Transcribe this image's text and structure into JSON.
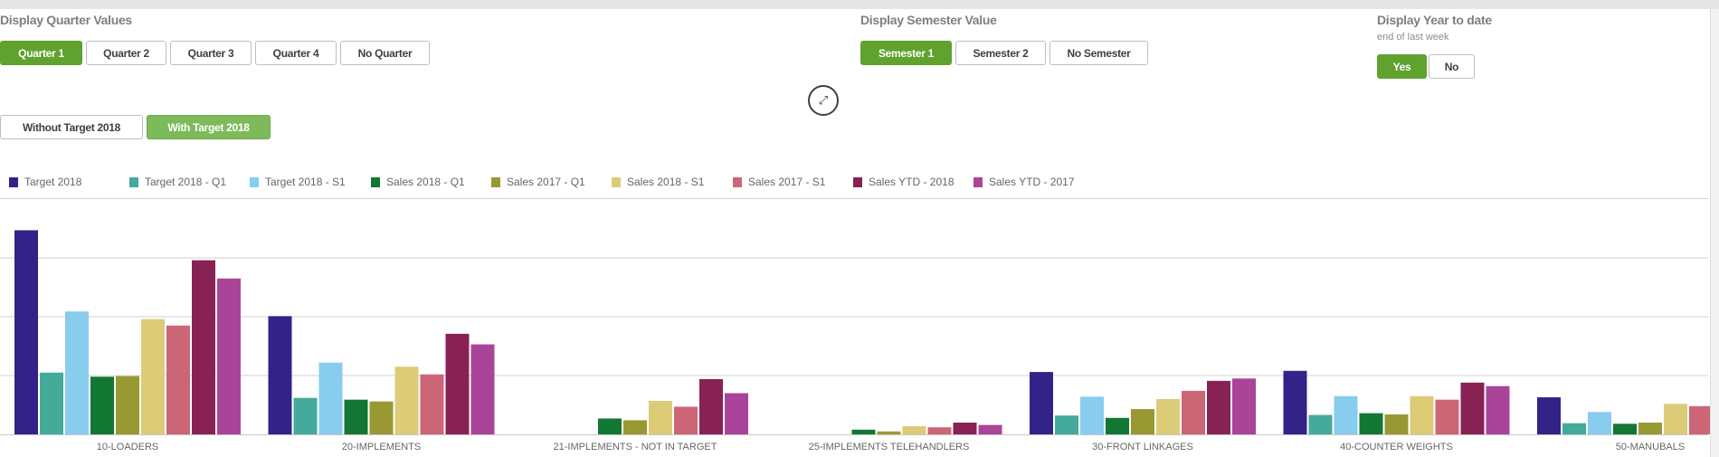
{
  "quarter": {
    "title": "Display Quarter Values",
    "options": [
      "Quarter 1",
      "Quarter 2",
      "Quarter 3",
      "Quarter 4",
      "No Quarter"
    ],
    "selected": "Quarter 1"
  },
  "semester": {
    "title": "Display Semester Value",
    "options": [
      "Semester 1",
      "Semester 2",
      "No Semester"
    ],
    "selected": "Semester 1"
  },
  "ytd": {
    "title": "Display Year to date",
    "subtitle": "end of last week",
    "options": [
      "Yes",
      "No"
    ],
    "selected": "Yes"
  },
  "target": {
    "options": [
      "Without Target 2018",
      "With Target 2018"
    ],
    "selected": "With Target 2018"
  },
  "icons": {
    "expand": "expand-arrows-icon"
  },
  "colors": {
    "selected_button": "#5fa22e",
    "target_selected_button": "#7dbb5a"
  },
  "chart_data": {
    "type": "bar",
    "grid": true,
    "legend": "top-left",
    "y_axis_labels_shown": false,
    "categories": [
      "10-LOADERS",
      "20-IMPLEMENTS",
      "21-IMPLEMENTS - NOT IN TARGET",
      "25-IMPLEMENTS TELEHANDLERS",
      "30-FRONT LINKAGES",
      "40-COUNTER WEIGHTS",
      "50-MANUBALS"
    ],
    "series": [
      {
        "name": "Target 2018",
        "color": "#332288",
        "values": [
          3.47,
          2.01,
          0,
          0,
          1.06,
          1.08,
          0.63
        ]
      },
      {
        "name": "Target 2018 - Q1",
        "color": "#44aa99",
        "values": [
          1.05,
          0.62,
          0,
          0,
          0.32,
          0.33,
          0.19
        ]
      },
      {
        "name": "Target 2018 - S1",
        "color": "#88ccee",
        "values": [
          2.09,
          1.22,
          0,
          0,
          0.64,
          0.65,
          0.38
        ]
      },
      {
        "name": "Sales 2018 - Q1",
        "color": "#117733",
        "values": [
          0.98,
          0.59,
          0.27,
          0.08,
          0.28,
          0.36,
          0.18
        ]
      },
      {
        "name": "Sales 2017 - Q1",
        "color": "#999933",
        "values": [
          0.99,
          0.56,
          0.24,
          0.05,
          0.43,
          0.34,
          0.2
        ]
      },
      {
        "name": "Sales 2018 - S1",
        "color": "#ddcc77",
        "values": [
          1.96,
          1.15,
          0.57,
          0.14,
          0.6,
          0.65,
          0.52
        ]
      },
      {
        "name": "Sales 2017 - S1",
        "color": "#cc6677",
        "values": [
          1.85,
          1.02,
          0.47,
          0.12,
          0.74,
          0.59,
          0.48
        ]
      },
      {
        "name": "Sales YTD - 2018",
        "color": "#882255",
        "values": [
          2.96,
          1.71,
          0.94,
          0.2,
          0.91,
          0.88,
          null
        ]
      },
      {
        "name": "Sales YTD - 2017",
        "color": "#aa4499",
        "values": [
          2.65,
          1.53,
          0.7,
          0.16,
          0.95,
          0.82,
          null
        ]
      }
    ],
    "ylim": [
      0,
      3.5
    ]
  }
}
